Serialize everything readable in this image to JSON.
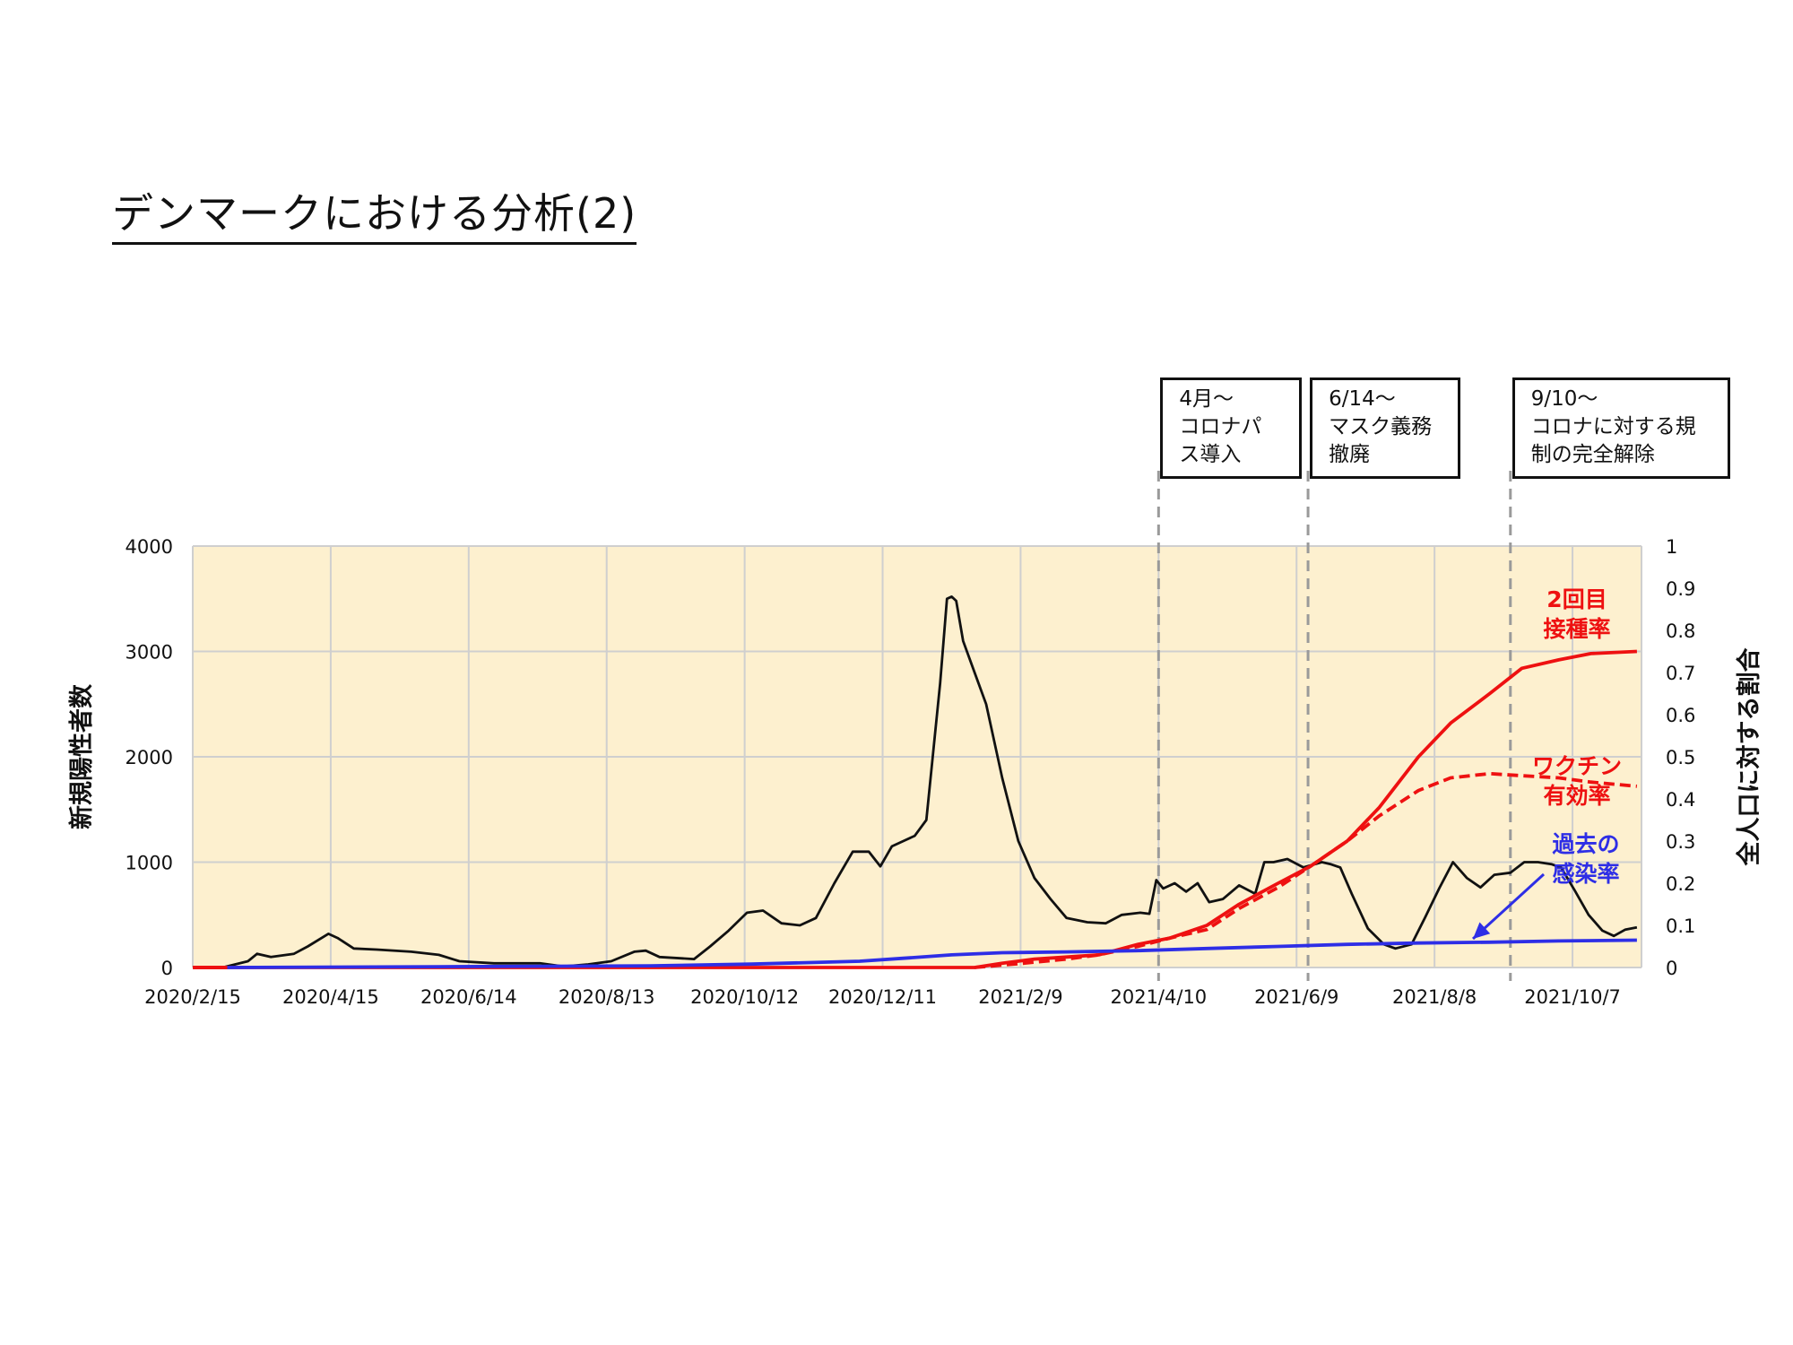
{
  "page": {
    "title": "デンマークにおける分析(2)"
  },
  "annotations": [
    {
      "date": "2021-04-10",
      "lines": [
        "4月～",
        "コロナパ",
        "ス導入"
      ]
    },
    {
      "date": "2021-06-14",
      "lines": [
        "6/14～",
        "マスク義務",
        "撤廃"
      ]
    },
    {
      "date": "2021-09-10",
      "lines": [
        "9/10～",
        "コロナに対する規",
        "制の完全解除"
      ]
    }
  ],
  "colors": {
    "plot_bg": "#FDF0CF",
    "grid": "#CFCFCF",
    "cases": "#111111",
    "vaccinated": "#EE1111",
    "vaccine_effect": "#EE1111",
    "infected": "#2E2EE6",
    "vline": "#9A9A9A"
  },
  "chart_data": {
    "type": "line",
    "title": "",
    "ylabel": "新規陽性者数",
    "y2label": "全人口に対する割合",
    "xlim": [
      "2020-02-15",
      "2021-11-06"
    ],
    "ylim": [
      0,
      4000
    ],
    "y2lim": [
      0,
      1
    ],
    "grid": true,
    "x_tick_labels": [
      "2020/2/15",
      "2020/4/15",
      "2020/6/14",
      "2020/8/13",
      "2020/10/12",
      "2020/12/11",
      "2021/2/9",
      "2021/4/10",
      "2021/6/9",
      "2021/8/8",
      "2021/10/7"
    ],
    "x_tick_dates": [
      "2020-02-15",
      "2020-04-15",
      "2020-06-14",
      "2020-08-13",
      "2020-10-12",
      "2020-12-11",
      "2021-02-09",
      "2021-04-10",
      "2021-06-09",
      "2021-08-08",
      "2021-10-07"
    ],
    "y_tick_labels": [
      "0",
      "1000",
      "2000",
      "3000",
      "4000"
    ],
    "y_ticks": [
      0,
      1000,
      2000,
      3000,
      4000
    ],
    "y2_tick_labels": [
      "0",
      "0.1",
      "0.2",
      "0.3",
      "0.4",
      "0.5",
      "0.6",
      "0.7",
      "0.8",
      "0.9",
      "1"
    ],
    "y2_ticks": [
      0,
      0.1,
      0.2,
      0.3,
      0.4,
      0.5,
      0.6,
      0.7,
      0.8,
      0.9,
      1
    ],
    "series": [
      {
        "key": "cases",
        "axis": "left",
        "style": "solid",
        "points": [
          [
            "2020-02-28",
            0
          ],
          [
            "2020-03-10",
            60
          ],
          [
            "2020-03-14",
            130
          ],
          [
            "2020-03-20",
            100
          ],
          [
            "2020-03-30",
            130
          ],
          [
            "2020-04-05",
            200
          ],
          [
            "2020-04-14",
            320
          ],
          [
            "2020-04-18",
            280
          ],
          [
            "2020-04-25",
            180
          ],
          [
            "2020-05-05",
            170
          ],
          [
            "2020-05-20",
            150
          ],
          [
            "2020-06-01",
            120
          ],
          [
            "2020-06-10",
            60
          ],
          [
            "2020-06-25",
            40
          ],
          [
            "2020-07-15",
            40
          ],
          [
            "2020-07-25",
            10
          ],
          [
            "2020-08-05",
            30
          ],
          [
            "2020-08-15",
            60
          ],
          [
            "2020-08-25",
            150
          ],
          [
            "2020-08-30",
            160
          ],
          [
            "2020-09-05",
            100
          ],
          [
            "2020-09-20",
            80
          ],
          [
            "2020-09-27",
            200
          ],
          [
            "2020-10-05",
            350
          ],
          [
            "2020-10-13",
            520
          ],
          [
            "2020-10-20",
            540
          ],
          [
            "2020-10-28",
            420
          ],
          [
            "2020-11-05",
            400
          ],
          [
            "2020-11-12",
            470
          ],
          [
            "2020-11-20",
            800
          ],
          [
            "2020-11-28",
            1100
          ],
          [
            "2020-12-05",
            1100
          ],
          [
            "2020-12-10",
            960
          ],
          [
            "2020-12-15",
            1150
          ],
          [
            "2020-12-20",
            1200
          ],
          [
            "2020-12-25",
            1250
          ],
          [
            "2020-12-30",
            1400
          ],
          [
            "2021-01-05",
            2700
          ],
          [
            "2021-01-08",
            3500
          ],
          [
            "2021-01-10",
            3520
          ],
          [
            "2021-01-12",
            3480
          ],
          [
            "2021-01-15",
            3100
          ],
          [
            "2021-01-20",
            2800
          ],
          [
            "2021-01-25",
            2500
          ],
          [
            "2021-02-01",
            1800
          ],
          [
            "2021-02-08",
            1200
          ],
          [
            "2021-02-15",
            850
          ],
          [
            "2021-02-22",
            650
          ],
          [
            "2021-03-01",
            470
          ],
          [
            "2021-03-10",
            430
          ],
          [
            "2021-03-18",
            420
          ],
          [
            "2021-03-25",
            500
          ],
          [
            "2021-04-02",
            520
          ],
          [
            "2021-04-06",
            510
          ],
          [
            "2021-04-09",
            830
          ],
          [
            "2021-04-12",
            750
          ],
          [
            "2021-04-17",
            800
          ],
          [
            "2021-04-22",
            720
          ],
          [
            "2021-04-27",
            800
          ],
          [
            "2021-05-02",
            620
          ],
          [
            "2021-05-08",
            650
          ],
          [
            "2021-05-15",
            780
          ],
          [
            "2021-05-22",
            700
          ],
          [
            "2021-05-26",
            1000
          ],
          [
            "2021-05-30",
            1000
          ],
          [
            "2021-06-05",
            1030
          ],
          [
            "2021-06-12",
            950
          ],
          [
            "2021-06-20",
            1000
          ],
          [
            "2021-06-24",
            980
          ],
          [
            "2021-06-28",
            950
          ],
          [
            "2021-07-03",
            700
          ],
          [
            "2021-07-10",
            370
          ],
          [
            "2021-07-17",
            220
          ],
          [
            "2021-07-22",
            180
          ],
          [
            "2021-07-29",
            220
          ],
          [
            "2021-08-04",
            480
          ],
          [
            "2021-08-10",
            750
          ],
          [
            "2021-08-16",
            1000
          ],
          [
            "2021-08-22",
            850
          ],
          [
            "2021-08-28",
            760
          ],
          [
            "2021-09-03",
            880
          ],
          [
            "2021-09-10",
            900
          ],
          [
            "2021-09-16",
            1000
          ],
          [
            "2021-09-22",
            1000
          ],
          [
            "2021-09-28",
            980
          ],
          [
            "2021-10-02",
            950
          ],
          [
            "2021-10-08",
            730
          ],
          [
            "2021-10-14",
            500
          ],
          [
            "2021-10-20",
            350
          ],
          [
            "2021-10-25",
            300
          ],
          [
            "2021-10-30",
            360
          ],
          [
            "2021-11-04",
            380
          ]
        ]
      },
      {
        "key": "vaccinated",
        "axis": "right",
        "style": "solid",
        "label_lines": [
          "2回目",
          "接種率"
        ],
        "points": [
          [
            "2020-02-15",
            0
          ],
          [
            "2021-01-20",
            0
          ],
          [
            "2021-02-01",
            0.01
          ],
          [
            "2021-02-15",
            0.02
          ],
          [
            "2021-03-01",
            0.025
          ],
          [
            "2021-03-15",
            0.03
          ],
          [
            "2021-04-01",
            0.055
          ],
          [
            "2021-04-15",
            0.07
          ],
          [
            "2021-05-01",
            0.1
          ],
          [
            "2021-05-15",
            0.15
          ],
          [
            "2021-06-01",
            0.2
          ],
          [
            "2021-06-15",
            0.24
          ],
          [
            "2021-07-01",
            0.3
          ],
          [
            "2021-07-15",
            0.38
          ],
          [
            "2021-08-01",
            0.5
          ],
          [
            "2021-08-15",
            0.58
          ],
          [
            "2021-09-01",
            0.65
          ],
          [
            "2021-09-15",
            0.71
          ],
          [
            "2021-10-01",
            0.73
          ],
          [
            "2021-10-15",
            0.745
          ],
          [
            "2021-11-04",
            0.75
          ]
        ]
      },
      {
        "key": "vaccine_effect",
        "axis": "right",
        "style": "dashed",
        "label_lines": [
          "ワクチン",
          "有効率"
        ],
        "points": [
          [
            "2021-01-20",
            0
          ],
          [
            "2021-02-10",
            0.01
          ],
          [
            "2021-03-01",
            0.02
          ],
          [
            "2021-03-15",
            0.03
          ],
          [
            "2021-04-01",
            0.05
          ],
          [
            "2021-04-15",
            0.07
          ],
          [
            "2021-05-01",
            0.09
          ],
          [
            "2021-05-15",
            0.14
          ],
          [
            "2021-06-01",
            0.19
          ],
          [
            "2021-06-15",
            0.24
          ],
          [
            "2021-07-01",
            0.3
          ],
          [
            "2021-07-15",
            0.36
          ],
          [
            "2021-08-01",
            0.42
          ],
          [
            "2021-08-15",
            0.45
          ],
          [
            "2021-09-01",
            0.46
          ],
          [
            "2021-09-15",
            0.455
          ],
          [
            "2021-10-01",
            0.45
          ],
          [
            "2021-10-15",
            0.44
          ],
          [
            "2021-11-04",
            0.43
          ]
        ]
      },
      {
        "key": "infected",
        "axis": "right",
        "style": "solid",
        "label_lines": [
          "過去の",
          "感染率"
        ],
        "points": [
          [
            "2020-02-28",
            0
          ],
          [
            "2020-06-01",
            0.002
          ],
          [
            "2020-09-01",
            0.004
          ],
          [
            "2020-10-15",
            0.008
          ],
          [
            "2020-12-01",
            0.015
          ],
          [
            "2020-12-20",
            0.022
          ],
          [
            "2021-01-10",
            0.03
          ],
          [
            "2021-02-01",
            0.035
          ],
          [
            "2021-03-01",
            0.037
          ],
          [
            "2021-04-01",
            0.04
          ],
          [
            "2021-05-01",
            0.045
          ],
          [
            "2021-06-01",
            0.05
          ],
          [
            "2021-07-01",
            0.055
          ],
          [
            "2021-08-01",
            0.058
          ],
          [
            "2021-09-01",
            0.06
          ],
          [
            "2021-10-01",
            0.063
          ],
          [
            "2021-11-04",
            0.065
          ]
        ]
      }
    ]
  }
}
